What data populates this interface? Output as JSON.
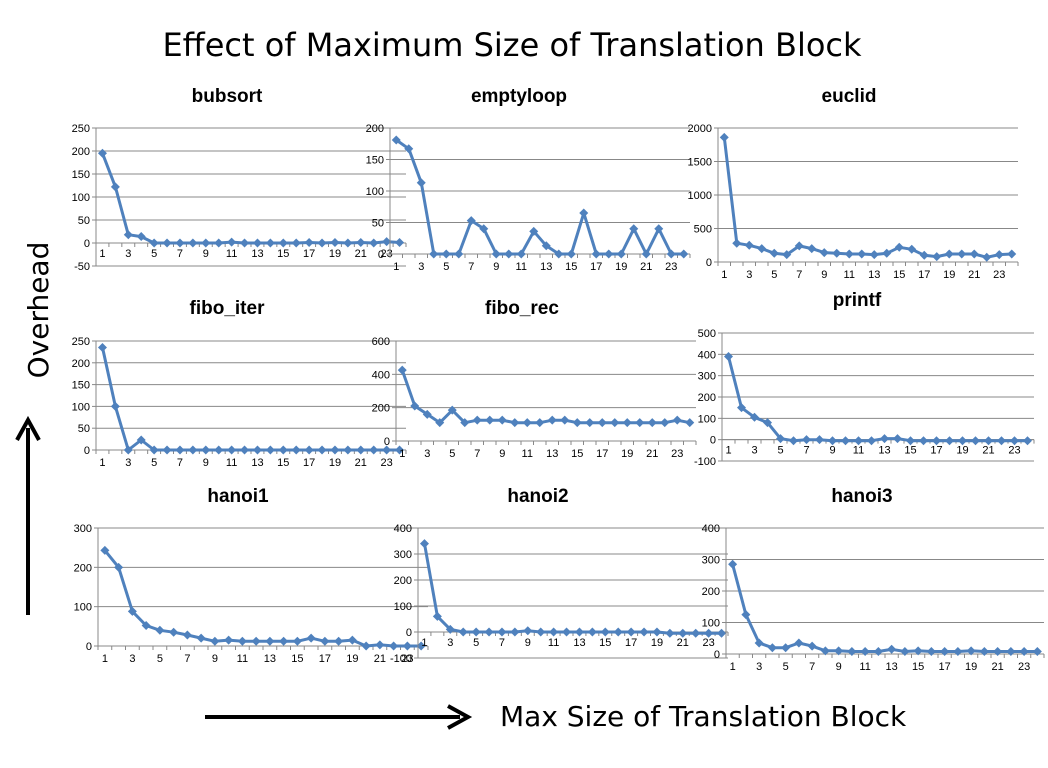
{
  "title": "Effect of Maximum Size of Translation Block",
  "axes": {
    "y_label": "Overhead",
    "x_label": "Max  Size  of Translation Block"
  },
  "colors": {
    "series": "#4F81BD",
    "grid": "#888888"
  },
  "chart_data": [
    {
      "type": "line",
      "title": "bubsort",
      "ylim": [
        -50,
        250
      ],
      "yticks": [
        -50,
        0,
        50,
        100,
        150,
        200,
        250
      ],
      "x": [
        1,
        2,
        3,
        4,
        5,
        6,
        7,
        8,
        9,
        10,
        11,
        12,
        13,
        14,
        15,
        16,
        17,
        18,
        19,
        20,
        21,
        22,
        23,
        24
      ],
      "xtick_labels": [
        "1",
        "3",
        "5",
        "7",
        "9",
        "11",
        "13",
        "15",
        "17",
        "19",
        "21",
        "23"
      ],
      "values": [
        195,
        122,
        18,
        14,
        0,
        0,
        0,
        0,
        0,
        0,
        2,
        0,
        0,
        0,
        0,
        0,
        1,
        0,
        1,
        0,
        1,
        0,
        3,
        1
      ]
    },
    {
      "type": "line",
      "title": "emptyloop",
      "ylim": [
        0,
        200
      ],
      "yticks": [
        0,
        50,
        100,
        150,
        200
      ],
      "x": [
        1,
        2,
        3,
        4,
        5,
        6,
        7,
        8,
        9,
        10,
        11,
        12,
        13,
        14,
        15,
        16,
        17,
        18,
        19,
        20,
        21,
        22,
        23,
        24
      ],
      "xtick_labels": [
        "1",
        "3",
        "5",
        "7",
        "9",
        "11",
        "13",
        "15",
        "17",
        "19",
        "21",
        "23"
      ],
      "values": [
        181,
        167,
        113,
        0,
        0,
        0,
        53,
        40,
        0,
        0,
        0,
        36,
        13,
        0,
        0,
        65,
        0,
        0,
        0,
        40,
        0,
        40,
        0,
        0
      ]
    },
    {
      "type": "line",
      "title": "euclid",
      "ylim": [
        0,
        2000
      ],
      "yticks": [
        0,
        500,
        1000,
        1500,
        2000
      ],
      "x": [
        1,
        2,
        3,
        4,
        5,
        6,
        7,
        8,
        9,
        10,
        11,
        12,
        13,
        14,
        15,
        16,
        17,
        18,
        19,
        20,
        21,
        22,
        23,
        24
      ],
      "xtick_labels": [
        "1",
        "3",
        "5",
        "7",
        "9",
        "11",
        "13",
        "15",
        "17",
        "19",
        "21",
        "23"
      ],
      "values": [
        1860,
        280,
        250,
        200,
        130,
        110,
        240,
        200,
        140,
        130,
        120,
        120,
        110,
        130,
        220,
        190,
        100,
        80,
        120,
        120,
        120,
        70,
        110,
        120
      ]
    },
    {
      "type": "line",
      "title": "fibo_iter",
      "ylim": [
        0,
        250
      ],
      "yticks": [
        0,
        50,
        100,
        150,
        200,
        250
      ],
      "x": [
        1,
        2,
        3,
        4,
        5,
        6,
        7,
        8,
        9,
        10,
        11,
        12,
        13,
        14,
        15,
        16,
        17,
        18,
        19,
        20,
        21,
        22,
        23,
        24
      ],
      "xtick_labels": [
        "1",
        "3",
        "5",
        "7",
        "9",
        "11",
        "13",
        "15",
        "17",
        "19",
        "21",
        "23"
      ],
      "values": [
        235,
        100,
        0,
        23,
        0,
        0,
        0,
        0,
        0,
        0,
        0,
        0,
        0,
        0,
        0,
        0,
        0,
        0,
        0,
        0,
        0,
        0,
        0,
        0
      ]
    },
    {
      "type": "line",
      "title": "fibo_rec",
      "ylim": [
        0,
        600
      ],
      "yticks": [
        0,
        200,
        400,
        600
      ],
      "x": [
        1,
        2,
        3,
        4,
        5,
        6,
        7,
        8,
        9,
        10,
        11,
        12,
        13,
        14,
        15,
        16,
        17,
        18,
        19,
        20,
        21,
        22,
        23,
        24
      ],
      "xtick_labels": [
        "1",
        "3",
        "5",
        "7",
        "9",
        "11",
        "13",
        "15",
        "17",
        "19",
        "21",
        "23"
      ],
      "values": [
        425,
        210,
        160,
        110,
        185,
        110,
        125,
        125,
        125,
        110,
        110,
        110,
        125,
        125,
        110,
        110,
        110,
        110,
        110,
        110,
        110,
        110,
        125,
        110
      ]
    },
    {
      "type": "line",
      "title": "printf",
      "ylim": [
        -100,
        500
      ],
      "yticks": [
        -100,
        0,
        100,
        200,
        300,
        400,
        500
      ],
      "x": [
        1,
        2,
        3,
        4,
        5,
        6,
        7,
        8,
        9,
        10,
        11,
        12,
        13,
        14,
        15,
        16,
        17,
        18,
        19,
        20,
        21,
        22,
        23,
        24
      ],
      "xtick_labels": [
        "1",
        "3",
        "5",
        "7",
        "9",
        "11",
        "13",
        "15",
        "17",
        "19",
        "21",
        "23"
      ],
      "values": [
        390,
        150,
        105,
        80,
        5,
        -5,
        0,
        0,
        -5,
        -5,
        -5,
        -5,
        5,
        5,
        -5,
        -5,
        -5,
        -5,
        -5,
        -5,
        -5,
        -5,
        -5,
        -5
      ]
    },
    {
      "type": "line",
      "title": "hanoi1",
      "ylim": [
        0,
        300
      ],
      "yticks": [
        0,
        100,
        200,
        300
      ],
      "x": [
        1,
        2,
        3,
        4,
        5,
        6,
        7,
        8,
        9,
        10,
        11,
        12,
        13,
        14,
        15,
        16,
        17,
        18,
        19,
        20,
        21,
        22,
        23,
        24
      ],
      "xtick_labels": [
        "1",
        "3",
        "5",
        "7",
        "9",
        "11",
        "13",
        "15",
        "17",
        "19",
        "21",
        "23"
      ],
      "values": [
        243,
        200,
        88,
        52,
        40,
        35,
        28,
        20,
        12,
        15,
        12,
        12,
        12,
        12,
        12,
        20,
        12,
        12,
        15,
        0,
        3,
        0,
        0,
        0
      ]
    },
    {
      "type": "line",
      "title": "hanoi2",
      "ylim": [
        -100,
        400
      ],
      "yticks": [
        -100,
        0,
        100,
        200,
        300,
        400
      ],
      "x": [
        1,
        2,
        3,
        4,
        5,
        6,
        7,
        8,
        9,
        10,
        11,
        12,
        13,
        14,
        15,
        16,
        17,
        18,
        19,
        20,
        21,
        22,
        23,
        24
      ],
      "xtick_labels": [
        "1",
        "3",
        "5",
        "7",
        "9",
        "11",
        "13",
        "15",
        "17",
        "19",
        "21",
        "23"
      ],
      "values": [
        340,
        60,
        10,
        0,
        0,
        0,
        0,
        0,
        5,
        0,
        0,
        0,
        0,
        0,
        0,
        0,
        0,
        0,
        0,
        -5,
        -5,
        -5,
        -5,
        -5
      ]
    },
    {
      "type": "line",
      "title": "hanoi3",
      "ylim": [
        0,
        400
      ],
      "yticks": [
        0,
        100,
        200,
        300,
        400
      ],
      "x": [
        1,
        2,
        3,
        4,
        5,
        6,
        7,
        8,
        9,
        10,
        11,
        12,
        13,
        14,
        15,
        16,
        17,
        18,
        19,
        20,
        21,
        22,
        23,
        24
      ],
      "xtick_labels": [
        "1",
        "3",
        "5",
        "7",
        "9",
        "11",
        "13",
        "15",
        "17",
        "19",
        "21",
        "23"
      ],
      "values": [
        285,
        125,
        35,
        20,
        20,
        35,
        25,
        10,
        10,
        8,
        8,
        8,
        15,
        8,
        10,
        8,
        8,
        8,
        10,
        8,
        8,
        8,
        8,
        8
      ]
    }
  ]
}
